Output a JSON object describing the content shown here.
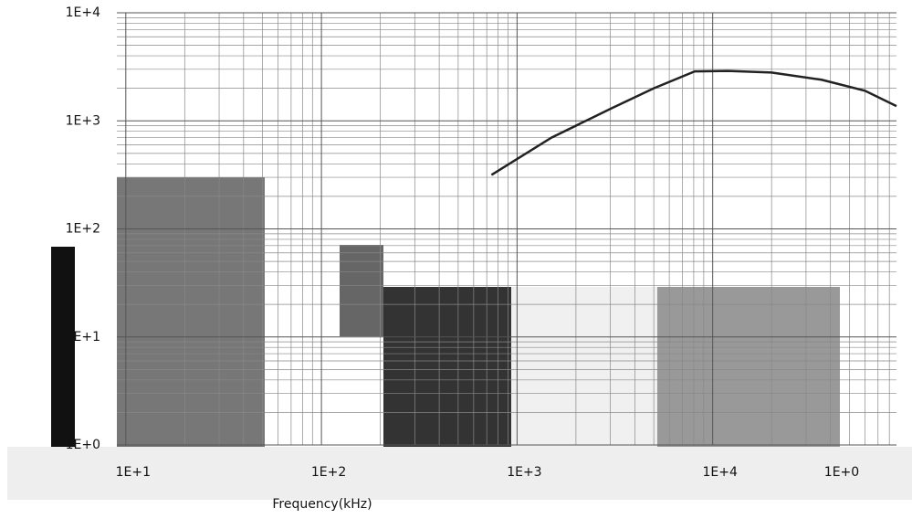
{
  "chart_data": {
    "type": "line",
    "x_label": "Frequency(kHz)",
    "x": [
      740,
      1500,
      3000,
      5000,
      8100,
      12000,
      20000,
      36000,
      60000,
      87000
    ],
    "series": [
      {
        "color": "#222222",
        "values": [
          316,
          700,
          1290,
          2000,
          2870,
          2900,
          2800,
          2400,
          1900,
          1370
        ]
      }
    ],
    "log_x": true,
    "log_y": true,
    "grid": true,
    "minor_grid": true,
    "xlim": [
      9,
      87000
    ],
    "ylim": [
      1,
      10000
    ],
    "xticks": [
      {
        "value": 10,
        "label": "1E+1"
      },
      {
        "value": 100,
        "label": "1E+2"
      },
      {
        "value": 1000,
        "label": "1E+3"
      },
      {
        "value": 10000,
        "label": "1E+4"
      }
    ],
    "yticks": [
      {
        "value": 1,
        "label": "1E+0"
      },
      {
        "value": 10,
        "label": "1E+1"
      },
      {
        "value": 100,
        "label": "1E+2"
      },
      {
        "value": 1000,
        "label": "1E+3"
      },
      {
        "value": 10000,
        "label": "1E+4"
      }
    ],
    "annotations": [
      "1E+0"
    ]
  }
}
